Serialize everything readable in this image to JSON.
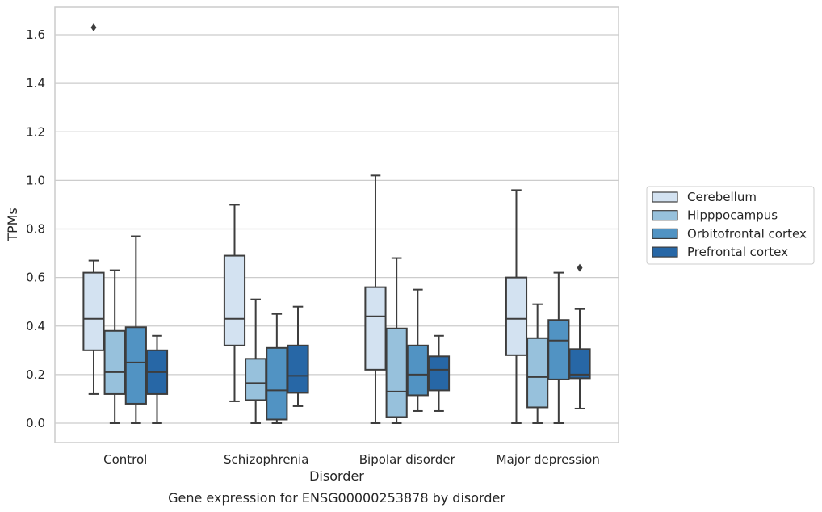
{
  "chart_data": {
    "type": "boxplot",
    "xlabel": "Disorder",
    "ylabel": "TPMs",
    "caption": "Gene expression for ENSG00000253878 by disorder",
    "ylim": [
      -0.08,
      1.72
    ],
    "yticks": [
      0.0,
      0.2,
      0.4,
      0.6,
      0.8,
      1.0,
      1.2,
      1.4,
      1.6
    ],
    "ytick_labels": [
      "0.0",
      "0.2",
      "0.4",
      "0.6",
      "0.8",
      "1.0",
      "1.2",
      "1.4",
      "1.6"
    ],
    "grid": true,
    "legend_position": "right",
    "categories": [
      "Control",
      "Schizophrenia",
      "Bipolar disorder",
      "Major depression"
    ],
    "series": [
      {
        "name": "Cerebellum",
        "color": "#d3e2f1",
        "boxes": [
          {
            "whislo": 0.12,
            "q1": 0.3,
            "med": 0.43,
            "q3": 0.62,
            "whishi": 0.67,
            "fliers": [
              1.63
            ]
          },
          {
            "whislo": 0.09,
            "q1": 0.32,
            "med": 0.43,
            "q3": 0.69,
            "whishi": 0.9,
            "fliers": []
          },
          {
            "whislo": 0.0,
            "q1": 0.22,
            "med": 0.44,
            "q3": 0.56,
            "whishi": 1.02,
            "fliers": []
          },
          {
            "whislo": 0.0,
            "q1": 0.28,
            "med": 0.43,
            "q3": 0.6,
            "whishi": 0.96,
            "fliers": []
          }
        ]
      },
      {
        "name": "Hipppocampus",
        "color": "#97c1dc",
        "boxes": [
          {
            "whislo": 0.0,
            "q1": 0.12,
            "med": 0.21,
            "q3": 0.38,
            "whishi": 0.63,
            "fliers": []
          },
          {
            "whislo": 0.0,
            "q1": 0.095,
            "med": 0.165,
            "q3": 0.265,
            "whishi": 0.51,
            "fliers": []
          },
          {
            "whislo": 0.0,
            "q1": 0.025,
            "med": 0.13,
            "q3": 0.39,
            "whishi": 0.68,
            "fliers": []
          },
          {
            "whislo": 0.0,
            "q1": 0.065,
            "med": 0.19,
            "q3": 0.35,
            "whishi": 0.49,
            "fliers": []
          }
        ]
      },
      {
        "name": "Orbitofrontal cortex",
        "color": "#5193c3",
        "boxes": [
          {
            "whislo": 0.0,
            "q1": 0.08,
            "med": 0.25,
            "q3": 0.395,
            "whishi": 0.77,
            "fliers": []
          },
          {
            "whislo": 0.0,
            "q1": 0.015,
            "med": 0.135,
            "q3": 0.31,
            "whishi": 0.45,
            "fliers": []
          },
          {
            "whislo": 0.05,
            "q1": 0.115,
            "med": 0.2,
            "q3": 0.32,
            "whishi": 0.55,
            "fliers": []
          },
          {
            "whislo": 0.0,
            "q1": 0.18,
            "med": 0.34,
            "q3": 0.425,
            "whishi": 0.62,
            "fliers": []
          }
        ]
      },
      {
        "name": "Prefrontal cortex",
        "color": "#2767a6",
        "boxes": [
          {
            "whislo": 0.0,
            "q1": 0.12,
            "med": 0.21,
            "q3": 0.3,
            "whishi": 0.36,
            "fliers": []
          },
          {
            "whislo": 0.07,
            "q1": 0.125,
            "med": 0.195,
            "q3": 0.32,
            "whishi": 0.48,
            "fliers": []
          },
          {
            "whislo": 0.05,
            "q1": 0.135,
            "med": 0.22,
            "q3": 0.275,
            "whishi": 0.36,
            "fliers": []
          },
          {
            "whislo": 0.06,
            "q1": 0.185,
            "med": 0.2,
            "q3": 0.305,
            "whishi": 0.47,
            "fliers": [
              0.64
            ]
          }
        ]
      }
    ]
  }
}
